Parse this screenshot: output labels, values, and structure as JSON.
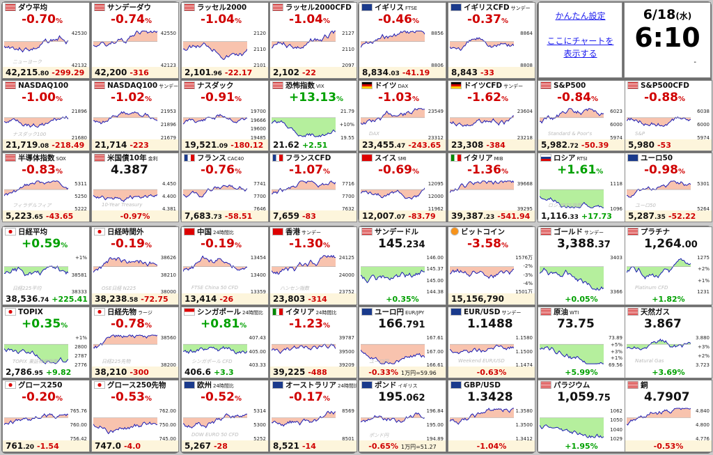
{
  "links": {
    "easy_settings": "かんたん設定",
    "chart_here_line1": "ここにチャートを",
    "chart_here_line2": "表示する"
  },
  "clock": {
    "date": "6/18",
    "weekday": "(水)",
    "time": "6:10",
    "tick": "-"
  },
  "colors": {
    "up": "#00a000",
    "down": "#d00000",
    "chart_line": "#1a1ab4",
    "fill_down": "#f7b9a0",
    "fill_up": "#a8ec8c"
  },
  "tiles": [
    {
      "name": "ダウ平均",
      "flag": "us",
      "pct": "-0.70",
      "pct_unit": "%",
      "price": "42,215",
      "dec": ".80",
      "chg": "-299.29",
      "dir": "down",
      "levels": [
        "42530",
        "42132"
      ],
      "wm": "ニューヨーク"
    },
    {
      "name": "サンデーダウ",
      "flag": "us",
      "pct": "-0.74",
      "pct_unit": "%",
      "price": "42,200",
      "dec": "",
      "chg": "-316",
      "dir": "down",
      "levels": [
        "42550",
        "42123"
      ],
      "wm": ""
    },
    {
      "name": "ラッセル2000",
      "flag": "us",
      "pct": "-1.04",
      "pct_unit": "%",
      "price": "2,101",
      "dec": ".96",
      "chg": "-22.17",
      "dir": "down",
      "levels": [
        "2120",
        "2110",
        "2101"
      ],
      "wm": ""
    },
    {
      "name": "ラッセル2000CFD",
      "flag": "us",
      "pct": "-1.04",
      "pct_unit": "%",
      "price": "2,102",
      "dec": "",
      "chg": "-22",
      "dir": "down",
      "levels": [
        "2127",
        "2110",
        "2097"
      ],
      "wm": ""
    },
    {
      "name": "イギリス",
      "sub": "FTSE",
      "flag": "gb",
      "pct": "-0.46",
      "pct_unit": "%",
      "price": "8,834",
      "dec": ".03",
      "chg": "-41.19",
      "dir": "down",
      "levels": [
        "8856",
        "8806"
      ],
      "wm": ""
    },
    {
      "name": "イギリスCFD",
      "sub": "サンデー",
      "flag": "gb",
      "pct": "-0.37",
      "pct_unit": "%",
      "price": "8,843",
      "dec": "",
      "chg": "-33",
      "dir": "down",
      "levels": [
        "8864",
        "8808"
      ],
      "wm": ""
    },
    {
      "name": "NASDAQ100",
      "flag": "us",
      "pct": "-1.00",
      "pct_unit": "%",
      "price": "21,719",
      "dec": ".08",
      "chg": "-218.49",
      "dir": "down",
      "levels": [
        "21896",
        "21680"
      ],
      "wm": "ナスダック100"
    },
    {
      "name": "NASDAQ100",
      "sub": "サンデー",
      "flag": "us",
      "pct": "-1.02",
      "pct_unit": "%",
      "price": "21,714",
      "dec": "",
      "chg": "-223",
      "dir": "down",
      "levels": [
        "21953",
        "21896",
        "21679"
      ],
      "wm": ""
    },
    {
      "name": "ナスダック",
      "flag": "us",
      "pct": "-0.91",
      "pct_unit": "%",
      "price": "19,521",
      "dec": ".09",
      "chg": "-180.12",
      "dir": "down",
      "levels": [
        "19700",
        "19666",
        "19600",
        "19485"
      ],
      "wm": ""
    },
    {
      "name": "恐怖指数",
      "sub": "VIX",
      "flag": "us",
      "pct": "+13.13",
      "pct_unit": "%",
      "price": "21.62",
      "dec": "",
      "chg": "+2.51",
      "dir": "up",
      "levels": [
        "21.79",
        "+10%",
        "19.55"
      ],
      "wm": ""
    },
    {
      "name": "ドイツ",
      "sub": "DAX",
      "flag": "de",
      "pct": "-1.03",
      "pct_unit": "%",
      "price": "23,455",
      "dec": ".47",
      "chg": "-243.65",
      "dir": "down",
      "levels": [
        "23549",
        "23312"
      ],
      "wm": "DAX"
    },
    {
      "name": "ドイツCFD",
      "sub": "サンデー",
      "flag": "de",
      "pct": "-1.62",
      "pct_unit": "%",
      "price": "23,308",
      "dec": "",
      "chg": "-384",
      "dir": "down",
      "levels": [
        "23604",
        "23218"
      ],
      "wm": ""
    },
    {
      "name": "S&P500",
      "flag": "us",
      "pct": "-0.84",
      "pct_unit": "%",
      "price": "5,982",
      "dec": ".72",
      "chg": "-50.39",
      "dir": "down",
      "levels": [
        "6023",
        "6000",
        "5974"
      ],
      "wm": "Standard & Poor's"
    },
    {
      "name": "S&P500CFD",
      "flag": "us",
      "pct": "-0.88",
      "pct_unit": "%",
      "price": "5,980",
      "dec": "",
      "chg": "-53",
      "dir": "down",
      "levels": [
        "6038",
        "6000",
        "5974"
      ],
      "wm": "S&P"
    },
    {
      "name": "半導体指数",
      "sub": "SOX",
      "flag": "us",
      "pct": "-0.83",
      "pct_unit": "%",
      "price": "5,223",
      "dec": ".65",
      "chg": "-43.65",
      "dir": "down",
      "levels": [
        "5311",
        "5250",
        "5222"
      ],
      "wm": "フィラデルフィア"
    },
    {
      "name": "米国債10年",
      "sub": "金利",
      "flag": "us",
      "pct": "",
      "pct_unit": "",
      "bigprice": "4.387",
      "bigdec": "",
      "price": "",
      "dec": "",
      "chg": "-0.97%",
      "dir": "down",
      "levels": [
        "4.450",
        "4.400",
        "4.381"
      ],
      "wm": "10-Year Treasury"
    },
    {
      "name": "フランス",
      "sub": "CAC40",
      "flag": "fr",
      "pct": "-0.76",
      "pct_unit": "%",
      "price": "7,683",
      "dec": ".73",
      "chg": "-58.51",
      "dir": "down",
      "levels": [
        "7741",
        "7700",
        "7646"
      ],
      "wm": ""
    },
    {
      "name": "フランスCFD",
      "flag": "fr",
      "pct": "-1.07",
      "pct_unit": "%",
      "price": "7,659",
      "dec": "",
      "chg": "-83",
      "dir": "down",
      "levels": [
        "7716",
        "7700",
        "7632"
      ],
      "wm": ""
    },
    {
      "name": "スイス",
      "sub": "SMI",
      "flag": "ch",
      "pct": "-0.69",
      "pct_unit": "%",
      "price": "12,007",
      "dec": ".07",
      "chg": "-83.79",
      "dir": "down",
      "levels": [
        "12095",
        "12000",
        "11962"
      ],
      "wm": ""
    },
    {
      "name": "イタリア",
      "sub": "MIB",
      "flag": "it",
      "pct": "-1.36",
      "pct_unit": "%",
      "price": "39,387",
      "dec": ".23",
      "chg": "-541.94",
      "dir": "down",
      "levels": [
        "39668",
        "39295"
      ],
      "wm": ""
    },
    {
      "name": "ロシア",
      "sub": "RTSI",
      "flag": "ru",
      "pct": "+1.61",
      "pct_unit": "%",
      "price": "1,116",
      "dec": ".33",
      "chg": "+17.73",
      "dir": "up",
      "levels": [
        "1118",
        "1096"
      ],
      "wm": "ロシアRTS指数"
    },
    {
      "name": "ユーロ50",
      "flag": "eu",
      "pct": "-0.98",
      "pct_unit": "%",
      "price": "5,287",
      "dec": ".35",
      "chg": "-52.22",
      "dir": "down",
      "levels": [
        "5301",
        "5264"
      ],
      "wm": "ユーロ50"
    },
    {
      "name": "日経平均",
      "flag": "jp",
      "pct": "+0.59",
      "pct_unit": "%",
      "price": "38,536",
      "dec": ".74",
      "chg": "+225.41",
      "dir": "up",
      "levels": [
        "+1%",
        "38581",
        "38333"
      ],
      "wm": "日経225平均"
    },
    {
      "name": "日経時間外",
      "flag": "jp",
      "pct": "-0.19",
      "pct_unit": "%",
      "price": "38,238",
      "dec": ".58",
      "chg": "-72.75",
      "dir": "down",
      "levels": [
        "38626",
        "38210",
        "38000"
      ],
      "wm": "OSE日経 N225"
    },
    {
      "name": "中国",
      "sub": "24時間比",
      "flag": "cn",
      "pct": "-0.19",
      "pct_unit": "%",
      "price": "13,414",
      "dec": "",
      "chg": "-26",
      "dir": "down",
      "levels": [
        "13454",
        "13400",
        "13359"
      ],
      "wm": "FTSE China 50 CFD"
    },
    {
      "name": "香港",
      "sub": "サンデー",
      "flag": "hk",
      "pct": "-1.30",
      "pct_unit": "%",
      "price": "23,803",
      "dec": "",
      "chg": "-314",
      "dir": "down",
      "levels": [
        "24125",
        "24000",
        "23752"
      ],
      "wm": "ハンセン指数"
    },
    {
      "name": "サンデードル",
      "flag": "us",
      "pct": "",
      "pct_unit": "",
      "bigprice": "145",
      "bigdec": ".234",
      "price": "",
      "dec": "",
      "chg": "+0.35%",
      "dir": "up",
      "levels": [
        "146.00",
        "145.37",
        "145.00",
        "144.38"
      ],
      "wm": ""
    },
    {
      "name": "ビットコイン",
      "flag": "btc",
      "pct": "-3.58",
      "pct_unit": "%",
      "price": "15,156,790",
      "dec": "",
      "chg": "",
      "dir": "down",
      "levels": [
        "1576万",
        "-2%",
        "-3%",
        "-4%",
        "1501万"
      ],
      "wm": ""
    },
    {
      "name": "ゴールド",
      "sub": "サンデー",
      "flag": "us",
      "pct": "",
      "pct_unit": "",
      "bigprice": "3,388",
      "bigdec": ".37",
      "price": "",
      "dec": "",
      "chg": "+0.05%",
      "dir": "up",
      "levels": [
        "3403",
        "3366"
      ],
      "wm": ""
    },
    {
      "name": "プラチナ",
      "flag": "us",
      "pct": "",
      "pct_unit": "",
      "bigprice": "1,264",
      "bigdec": ".00",
      "price": "",
      "dec": "",
      "chg": "+1.82%",
      "dir": "up",
      "levels": [
        "1275",
        "+2%",
        "+1%",
        "1231"
      ],
      "wm": "Platinum CFD"
    },
    {
      "name": "TOPIX",
      "flag": "jp",
      "pct": "+0.35",
      "pct_unit": "%",
      "price": "2,786",
      "dec": ".95",
      "chg": "+9.82",
      "dir": "up",
      "levels": [
        "+1%",
        "2800",
        "2787",
        "2776"
      ],
      "wm": "TOPIX 東証株価指数"
    },
    {
      "name": "日経先物",
      "sub": "ラージ",
      "flag": "jp",
      "pct": "-0.78",
      "pct_unit": "%",
      "price": "38,210",
      "dec": "",
      "chg": "-300",
      "dir": "down",
      "levels": [
        "38560",
        "38200"
      ],
      "wm": "日経225先物"
    },
    {
      "name": "シンガポール",
      "sub": "24時間比",
      "flag": "sg",
      "pct": "+0.81",
      "pct_unit": "%",
      "price": "406.6",
      "dec": "",
      "chg": "+3.3",
      "dir": "up",
      "levels": [
        "407.43",
        "405.00",
        "403.33"
      ],
      "wm": "シンガポール CFD"
    },
    {
      "name": "イタリア",
      "sub": "24時間比",
      "flag": "it",
      "pct": "-1.23",
      "pct_unit": "%",
      "price": "39,225",
      "dec": "",
      "chg": "-488",
      "dir": "down",
      "levels": [
        "39787",
        "39500",
        "39209"
      ],
      "wm": ""
    },
    {
      "name": "ユーロ円",
      "sub": "EUR/JPY",
      "flag": "eu",
      "pct": "",
      "pct_unit": "",
      "bigprice": "166",
      "bigdec": ".791",
      "price": "",
      "dec": "",
      "chg": "-0.33%",
      "extra": "1万円=59.96",
      "dir": "down",
      "levels": [
        "167.61",
        "167.00",
        "166.61"
      ],
      "wm": "ユーロ円"
    },
    {
      "name": "EUR/USD",
      "sub": "サンデー",
      "flag": "eu",
      "pct": "",
      "pct_unit": "",
      "bigprice": "1.1488",
      "bigdec": "",
      "price": "",
      "dec": "",
      "chg": "-0.63%",
      "dir": "down",
      "levels": [
        "1.1580",
        "1.1500",
        "1.1474"
      ],
      "wm": "Weekend EUR/USD"
    },
    {
      "name": "原油",
      "sub": "WTI",
      "flag": "us",
      "pct": "",
      "pct_unit": "",
      "bigprice": "73.75",
      "bigdec": "",
      "price": "",
      "dec": "",
      "chg": "+5.99%",
      "dir": "up",
      "levels": [
        "73.89",
        "+5%",
        "+3%",
        "+1%",
        "69.56"
      ],
      "wm": ""
    },
    {
      "name": "天然ガス",
      "flag": "us",
      "pct": "",
      "pct_unit": "",
      "bigprice": "3.867",
      "bigdec": "",
      "price": "",
      "dec": "",
      "chg": "+3.69%",
      "dir": "up",
      "levels": [
        "3.880",
        "+3%",
        "+2%",
        "3.723"
      ],
      "wm": "Natural Gas"
    },
    {
      "name": "グロース250",
      "flag": "jp",
      "pct": "-0.20",
      "pct_unit": "%",
      "price": "761",
      "dec": ".20",
      "chg": "-1.54",
      "dir": "down",
      "levels": [
        "765.76",
        "760.00",
        "756.42"
      ],
      "wm": ""
    },
    {
      "name": "グロース250先物",
      "flag": "jp",
      "pct": "-0.53",
      "pct_unit": "%",
      "price": "747.0",
      "dec": "",
      "chg": "-4.0",
      "dir": "down",
      "levels": [
        "762.00",
        "750.00",
        "745.00"
      ],
      "wm": ""
    },
    {
      "name": "欧州",
      "sub": "24時間比",
      "flag": "eu",
      "pct": "-0.52",
      "pct_unit": "%",
      "price": "5,267",
      "dec": "",
      "chg": "-28",
      "dir": "down",
      "levels": [
        "5314",
        "5300",
        "5252"
      ],
      "wm": "DOW EURO 50 CFD"
    },
    {
      "name": "オーストラリア",
      "sub": "24時間比",
      "flag": "au",
      "pct": "-0.17",
      "pct_unit": "%",
      "price": "8,521",
      "dec": "",
      "chg": "-14",
      "dir": "down",
      "levels": [
        "8569",
        "8501"
      ],
      "wm": ""
    },
    {
      "name": "ポンド",
      "sub": "イギリス",
      "flag": "gb",
      "pct": "",
      "pct_unit": "",
      "bigprice": "195",
      "bigdec": ".062",
      "price": "",
      "dec": "",
      "chg": "-0.65%",
      "extra": "1万円=51.27",
      "dir": "down",
      "levels": [
        "196.84",
        "195.00",
        "194.89"
      ],
      "wm": "ポンド円"
    },
    {
      "name": "GBP/USD",
      "flag": "gb",
      "pct": "",
      "pct_unit": "",
      "bigprice": "1.3428",
      "bigdec": "",
      "price": "",
      "dec": "",
      "chg": "-1.04%",
      "dir": "down",
      "levels": [
        "1.3580",
        "1.3500",
        "1.3412"
      ],
      "wm": ""
    },
    {
      "name": "パラジウム",
      "flag": "us",
      "pct": "",
      "pct_unit": "",
      "bigprice": "1,059",
      "bigdec": ".75",
      "price": "",
      "dec": "",
      "chg": "+1.95%",
      "dir": "up",
      "levels": [
        "1062",
        "1050",
        "1040",
        "1029"
      ],
      "wm": ""
    },
    {
      "name": "銅",
      "flag": "us",
      "pct": "",
      "pct_unit": "",
      "bigprice": "4.7907",
      "bigdec": "",
      "price": "",
      "dec": "",
      "chg": "-0.53%",
      "dir": "down",
      "levels": [
        "4.840",
        "4.800",
        "4.776"
      ],
      "wm": ""
    }
  ]
}
